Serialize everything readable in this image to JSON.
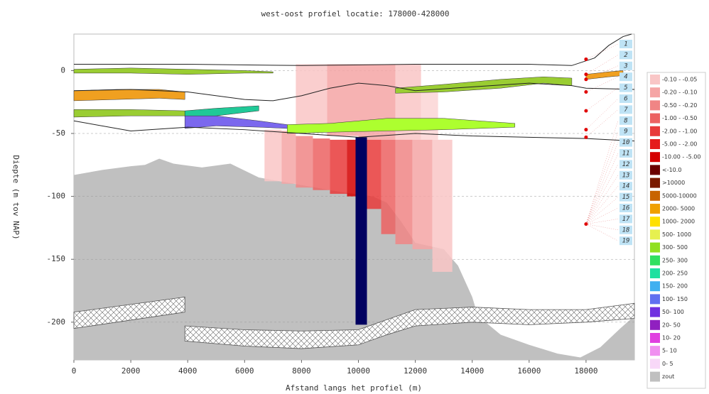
{
  "chart_data": {
    "type": "profile",
    "title": "west-oost profiel locatie: 178000-428000",
    "xlabel": "Afstand langs het profiel (m)",
    "ylabel": "Diepte (m tov NAP)",
    "xlim": [
      0,
      19700
    ],
    "ylim": [
      -230,
      29
    ],
    "xticks": [
      0,
      2000,
      4000,
      6000,
      8000,
      10000,
      12000,
      14000,
      16000,
      18000
    ],
    "yticks": [
      0,
      -50,
      -100,
      -150,
      -200
    ],
    "grid": true,
    "salt": {
      "color": "#c0c0c0",
      "x": [
        0,
        1000,
        2000,
        2500,
        3000,
        3500,
        4500,
        5500,
        6500,
        7500,
        8500,
        9500,
        10500,
        11000,
        11500,
        12000,
        13000,
        13500,
        14000,
        14200,
        15000,
        16000,
        17000,
        17800,
        18500,
        19200,
        19700
      ],
      "y": [
        -83,
        -79,
        -76,
        -75,
        -70,
        -74,
        -77,
        -74,
        -85,
        -89,
        -93,
        -97,
        -100,
        -105,
        -120,
        -137,
        -142,
        -155,
        -180,
        -195,
        -210,
        -218,
        -225,
        -228,
        -220,
        -205,
        -195
      ]
    },
    "hatched": [
      {
        "x": [
          0,
          3900
        ],
        "top": [
          -192,
          -180
        ],
        "bottom": [
          -205,
          -192
        ]
      },
      {
        "x": [
          3900,
          6000,
          8000,
          10000,
          11000,
          12000,
          14000,
          16000,
          18000,
          19700
        ],
        "top": [
          -203,
          -206,
          -207,
          -206,
          -198,
          -190,
          -188,
          -190,
          -190,
          -185
        ],
        "bottom": [
          -215,
          -219,
          -221,
          -218,
          -210,
          -203,
          -200,
          -202,
          -200,
          -197
        ]
      }
    ],
    "columns": [
      {
        "x0": 7800,
        "x1": 8900,
        "top": 5,
        "bottom": -45,
        "color": "#f9c6c6"
      },
      {
        "x0": 8900,
        "x1": 10000,
        "top": 5,
        "bottom": -52,
        "color": "#f5a5a5"
      },
      {
        "x0": 10000,
        "x1": 11300,
        "top": 5,
        "bottom": -55,
        "color": "#f5a5a5"
      },
      {
        "x0": 11300,
        "x1": 12200,
        "top": 5,
        "bottom": -55,
        "color": "#f9c6c6"
      },
      {
        "x0": 12200,
        "x1": 12800,
        "top": -15,
        "bottom": -55,
        "color": "#fbd5d5"
      },
      {
        "x0": 6700,
        "x1": 7300,
        "top": -47,
        "bottom": -88,
        "color": "#f9c6c6"
      },
      {
        "x0": 7300,
        "x1": 7800,
        "top": -48,
        "bottom": -90,
        "color": "#f5a5a5"
      },
      {
        "x0": 7800,
        "x1": 8400,
        "top": -52,
        "bottom": -93,
        "color": "#f08585"
      },
      {
        "x0": 8400,
        "x1": 9000,
        "top": -54,
        "bottom": -95,
        "color": "#ec6262"
      },
      {
        "x0": 9000,
        "x1": 9600,
        "top": -55,
        "bottom": -98,
        "color": "#e83a3a"
      },
      {
        "x0": 9600,
        "x1": 9900,
        "top": -55,
        "bottom": -100,
        "color": "#d40000"
      },
      {
        "x0": 10300,
        "x1": 10800,
        "top": -55,
        "bottom": -110,
        "color": "#e83a3a"
      },
      {
        "x0": 10800,
        "x1": 11300,
        "top": -55,
        "bottom": -130,
        "color": "#ec6262"
      },
      {
        "x0": 11300,
        "x1": 11900,
        "top": -55,
        "bottom": -138,
        "color": "#f08585"
      },
      {
        "x0": 11900,
        "x1": 12600,
        "top": -55,
        "bottom": -142,
        "color": "#f5a5a5"
      },
      {
        "x0": 12600,
        "x1": 13300,
        "top": -55,
        "bottom": -160,
        "color": "#f9c6c6"
      },
      {
        "x0": 9900,
        "x1": 10300,
        "top": -53,
        "bottom": -202,
        "color": "#000060"
      }
    ],
    "bands": [
      {
        "color": "#9acd32",
        "x": [
          0,
          2000,
          4000,
          6000,
          7000
        ],
        "top": [
          1,
          2,
          1,
          0,
          -1
        ],
        "bottom": [
          -2,
          -2,
          -3,
          -2,
          -2
        ]
      },
      {
        "color": "#f0a020",
        "x": [
          0,
          1500,
          3000,
          3900
        ],
        "top": [
          -16,
          -15,
          -15,
          -17
        ],
        "bottom": [
          -24,
          -23,
          -22,
          -23
        ]
      },
      {
        "color": "#9acd32",
        "x": [
          0,
          2000,
          3900
        ],
        "top": [
          -31,
          -31,
          -32
        ],
        "bottom": [
          -37,
          -36,
          -36
        ]
      },
      {
        "color": "#20c997",
        "x": [
          3900,
          5000,
          6500
        ],
        "top": [
          -32,
          -30,
          -28
        ],
        "bottom": [
          -37,
          -36,
          -32
        ]
      },
      {
        "color": "#7b68ee",
        "x": [
          3900,
          5000,
          6500,
          7500
        ],
        "top": [
          -36,
          -36,
          -40,
          -43
        ],
        "bottom": [
          -46,
          -44,
          -45,
          -46
        ]
      },
      {
        "color": "#adff2f",
        "x": [
          7500,
          9000,
          11000,
          13000,
          15500
        ],
        "top": [
          -43,
          -42,
          -38,
          -38,
          -42
        ],
        "bottom": [
          -50,
          -49,
          -48,
          -47,
          -45
        ]
      },
      {
        "color": "#9acd32",
        "x": [
          11300,
          13000,
          15000,
          16500,
          17500
        ],
        "top": [
          -14,
          -11,
          -7,
          -5,
          -6
        ],
        "bottom": [
          -18,
          -17,
          -14,
          -10,
          -12
        ]
      },
      {
        "color": "#f0a020",
        "x": [
          18000,
          18800,
          19300
        ],
        "top": [
          -3,
          -1,
          0
        ],
        "bottom": [
          -7,
          -5,
          -4
        ]
      }
    ],
    "horizons": [
      {
        "x": [
          0,
          4000,
          8000,
          12000,
          16000,
          17500,
          18300,
          18800,
          19300,
          19600
        ],
        "y": [
          5,
          5,
          4,
          5,
          5,
          4,
          10,
          20,
          27,
          29
        ]
      },
      {
        "x": [
          0,
          2000,
          4000,
          6000,
          7000,
          8000,
          9000,
          10000,
          11000,
          12000,
          14000,
          16000,
          17500,
          18000,
          19700
        ],
        "y": [
          -16,
          -15,
          -17,
          -23,
          -24,
          -20,
          -14,
          -10,
          -12,
          -16,
          -13,
          -10,
          -12,
          -14,
          -15
        ]
      },
      {
        "x": [
          0,
          2000,
          4000,
          6000,
          8000,
          10000,
          12000,
          14000,
          16000,
          18000,
          19700
        ],
        "y": [
          -40,
          -48,
          -45,
          -47,
          -50,
          -53,
          -50,
          -52,
          -53,
          -54,
          -56
        ]
      }
    ],
    "points": {
      "color": "#e00000",
      "x": [
        18000,
        18000,
        18000,
        18000,
        18000,
        18000,
        18000,
        18000
      ],
      "y": [
        9,
        -3,
        -7,
        -17,
        -32,
        -47,
        -53,
        -122
      ]
    },
    "layer_labels": [
      "1",
      "2",
      "3",
      "4",
      "5",
      "6",
      "7",
      "8",
      "9",
      "10",
      "11",
      "12",
      "13",
      "14",
      "15",
      "16",
      "17",
      "18",
      "19"
    ],
    "legend": [
      {
        "label": "-0.10 - -0.05",
        "color": "#f9c6c6"
      },
      {
        "label": "-0.20 - -0.10",
        "color": "#f5a5a5"
      },
      {
        "label": "-0.50 - -0.20",
        "color": "#f08585"
      },
      {
        "label": "-1.00 - -0.50",
        "color": "#ec6262"
      },
      {
        "label": "-2.00 - -1.00",
        "color": "#e83a3a"
      },
      {
        "label": "-5.00 - -2.00",
        "color": "#e51c1c"
      },
      {
        "label": "-10.00 - -5.00",
        "color": "#d40000"
      },
      {
        "label": "<-10.0",
        "color": "#6b0000"
      },
      {
        "label": ">10000",
        "color": "#7a1a00"
      },
      {
        "label": "5000-10000",
        "color": "#c86400"
      },
      {
        "label": "2000- 5000",
        "color": "#f0a000"
      },
      {
        "label": "1000- 2000",
        "color": "#ffe000"
      },
      {
        "label": "500- 1000",
        "color": "#e6f050"
      },
      {
        "label": "300- 500",
        "color": "#90e020"
      },
      {
        "label": "250- 300",
        "color": "#30e060"
      },
      {
        "label": "200- 250",
        "color": "#20e0a0"
      },
      {
        "label": "150- 200",
        "color": "#40b0f0"
      },
      {
        "label": "100- 150",
        "color": "#6070f0"
      },
      {
        "label": "50- 100",
        "color": "#7030e0"
      },
      {
        "label": "20- 50",
        "color": "#9020c0"
      },
      {
        "label": "10- 20",
        "color": "#e040e0"
      },
      {
        "label": "5- 10",
        "color": "#f090f0"
      },
      {
        "label": "0- 5",
        "color": "#f8d8f8"
      },
      {
        "label": "zout",
        "color": "#c0c0c0"
      }
    ]
  }
}
